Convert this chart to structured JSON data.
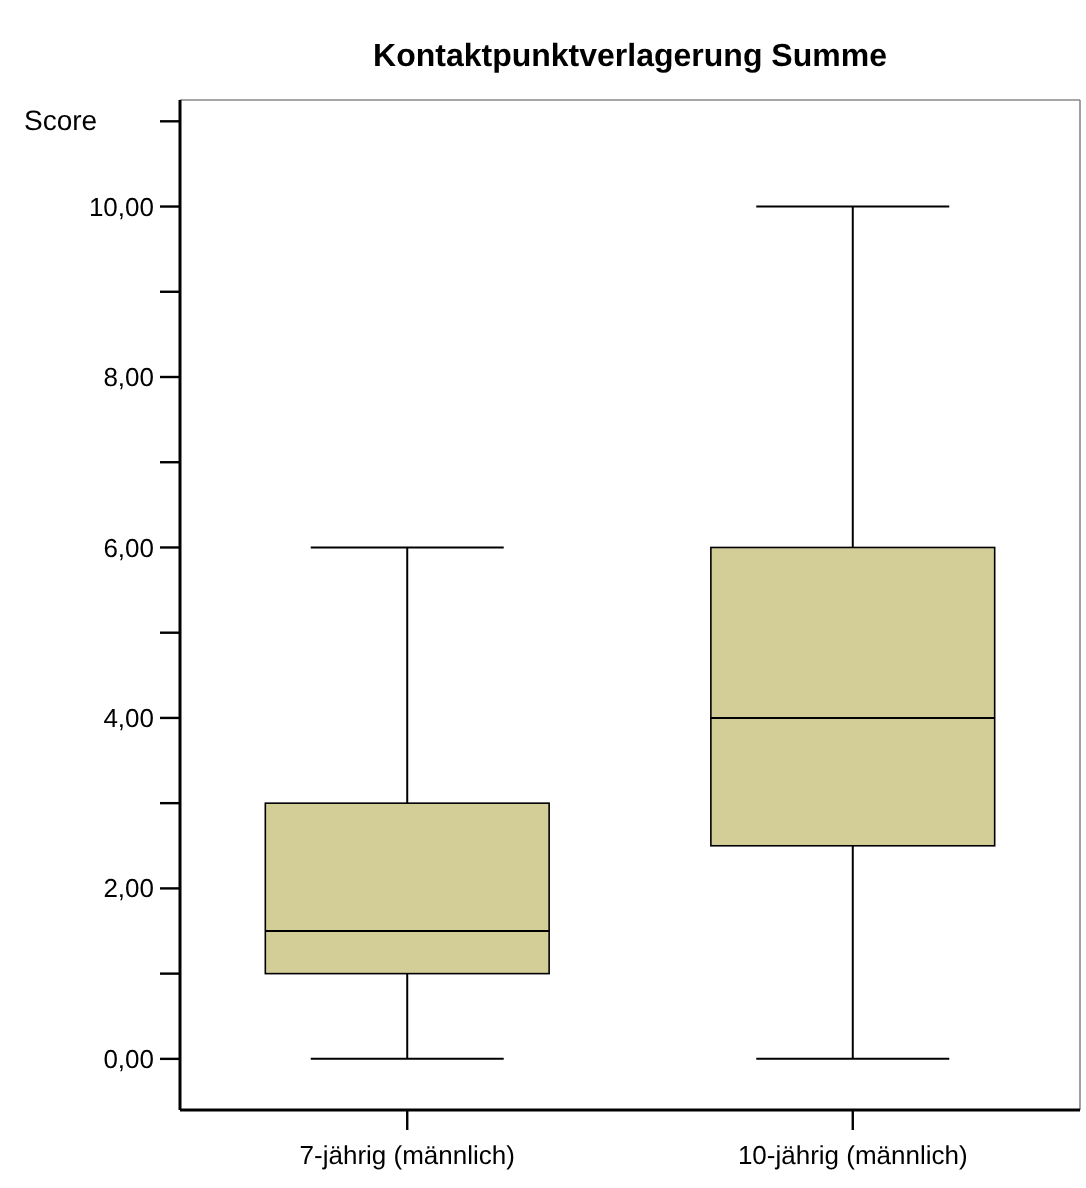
{
  "chart_data": {
    "type": "box",
    "title": "Kontaktpunktverlagerung Summe",
    "ylabel": "Score",
    "categories": [
      "7-jährig (männlich)",
      "10-jährig (männlich)"
    ],
    "boxes": [
      {
        "low": 0,
        "q1": 1,
        "median": 1.5,
        "q3": 3,
        "high": 6
      },
      {
        "low": 0,
        "q1": 2.5,
        "median": 4,
        "q3": 6,
        "high": 10
      }
    ],
    "color": "#d3cd98",
    "ylim": [
      -0.6,
      11.25
    ],
    "yticks": [
      {
        "value": 0,
        "label": "0,00"
      },
      {
        "value": 1,
        "label": null
      },
      {
        "value": 2,
        "label": "2,00"
      },
      {
        "value": 3,
        "label": null
      },
      {
        "value": 4,
        "label": "4,00"
      },
      {
        "value": 5,
        "label": null
      },
      {
        "value": 6,
        "label": "6,00"
      },
      {
        "value": 7,
        "label": null
      },
      {
        "value": 8,
        "label": "8,00"
      },
      {
        "value": 9,
        "label": null
      },
      {
        "value": 10,
        "label": "10,00"
      },
      {
        "value": 11,
        "label": null
      }
    ],
    "grid": false
  }
}
